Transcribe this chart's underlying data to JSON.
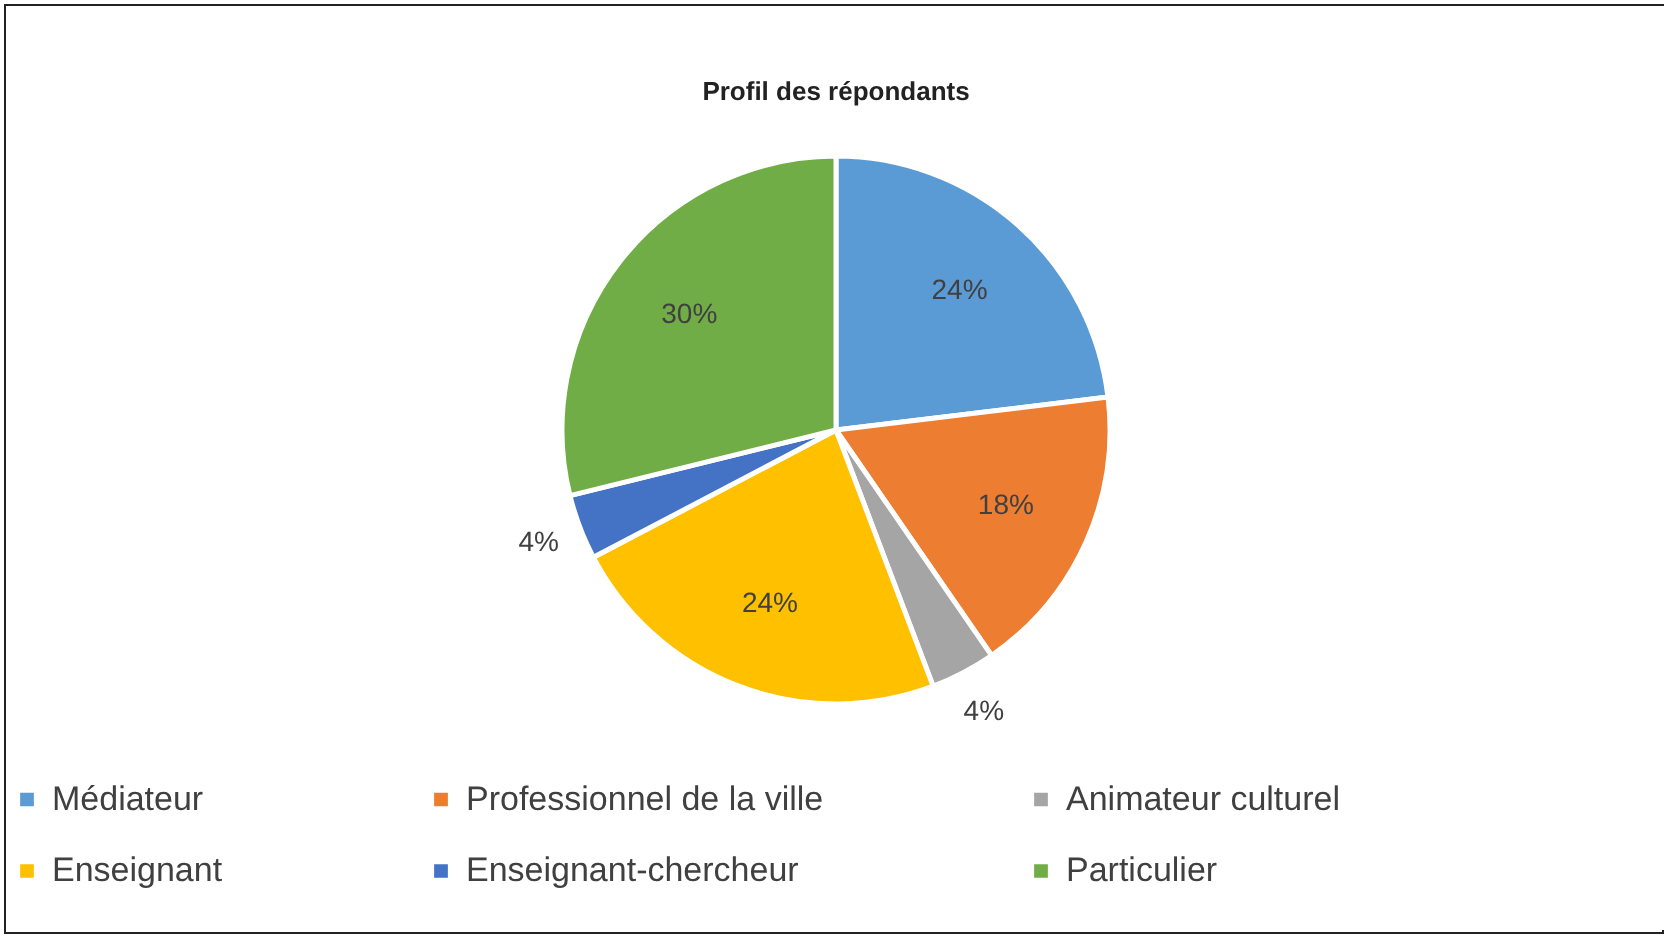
{
  "chart_data": {
    "type": "pie",
    "title": "Profil des répondants",
    "categories": [
      "Médiateur",
      "Professionnel de la ville",
      "Animateur culturel",
      "Enseignant",
      "Enseignant-chercheur",
      "Particulier"
    ],
    "values": [
      24,
      18,
      4,
      24,
      4,
      30
    ],
    "value_labels": [
      "24%",
      "18%",
      "4%",
      "24%",
      "4%",
      "30%"
    ],
    "colors": [
      "#5b9bd5",
      "#ed7d31",
      "#a5a5a5",
      "#ffc000",
      "#4472c4",
      "#70ad47"
    ],
    "legend": "bottom"
  }
}
